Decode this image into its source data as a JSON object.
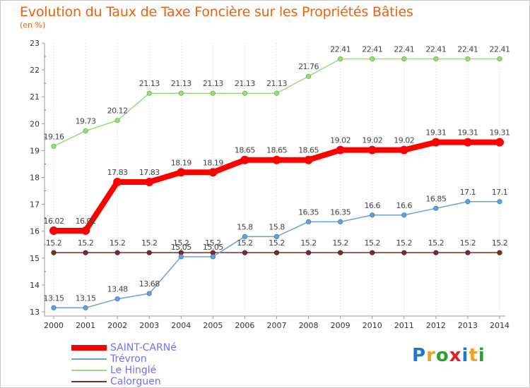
{
  "header": {
    "title": "Evolution du Taux de Taxe Foncière sur les Propriétés Bâties",
    "subtitle": "(en %)"
  },
  "logo": {
    "letters": [
      "P",
      "r",
      "o",
      "x",
      "i",
      "t",
      "i"
    ],
    "colors": [
      "#1f77c8",
      "#f0a020",
      "#2ca02c",
      "#e02020",
      "#1f77c8",
      "#f0a020",
      "#2ca02c"
    ]
  },
  "chart_data": {
    "type": "line",
    "x": [
      "2000",
      "2001",
      "2002",
      "2003",
      "2004",
      "2005",
      "2006",
      "2007",
      "2008",
      "2009",
      "2010",
      "2011",
      "2012",
      "2013",
      "2014"
    ],
    "ylim": [
      13,
      23
    ],
    "yticks": [
      "13",
      "14",
      "15",
      "16",
      "17",
      "18",
      "19",
      "20",
      "21",
      "22",
      "23"
    ],
    "grid": "dotted-vertical",
    "legend": "bottom-left",
    "series": [
      {
        "name": "SAINT-CARNé",
        "color": "#ff0000",
        "values": [
          16.02,
          16.02,
          17.83,
          17.83,
          18.19,
          18.19,
          18.65,
          18.65,
          18.65,
          19.02,
          19.02,
          19.02,
          19.31,
          19.31,
          19.31
        ],
        "labels": [
          "16.02",
          "16.02",
          "17.83",
          "17.83",
          "18.19",
          "18.19",
          "18.65",
          "18.65",
          "18.65",
          "19.02",
          "19.02",
          "19.02",
          "19.31",
          "19.31",
          "19.31"
        ]
      },
      {
        "name": "Trévron",
        "color": "#6aa0d8",
        "values": [
          13.15,
          13.15,
          13.48,
          13.68,
          15.05,
          15.05,
          15.8,
          15.8,
          16.35,
          16.35,
          16.6,
          16.6,
          16.85,
          17.1,
          17.1
        ],
        "labels": [
          "13.15",
          "13.15",
          "13.48",
          "13.68",
          "15.05",
          "15.05",
          "15.8",
          "15.8",
          "16.35",
          "16.35",
          "16.6",
          "16.6",
          "16.85",
          "17.1",
          "17.1"
        ]
      },
      {
        "name": "Le Hinglé",
        "color": "#99dd77",
        "values": [
          19.16,
          19.73,
          20.12,
          21.13,
          21.13,
          21.13,
          21.13,
          21.13,
          21.76,
          22.41,
          22.41,
          22.41,
          22.41,
          22.41,
          22.41
        ],
        "labels": [
          "19.16",
          "19.73",
          "20.12",
          "21.13",
          "21.13",
          "21.13",
          "21.13",
          "21.13",
          "21.76",
          "22.41",
          "22.41",
          "22.41",
          "22.41",
          "22.41",
          "22.41"
        ]
      },
      {
        "name": "Calorguen",
        "color": "#7a2e2e",
        "values": [
          15.2,
          15.2,
          15.2,
          15.2,
          15.2,
          15.2,
          15.2,
          15.2,
          15.2,
          15.2,
          15.2,
          15.2,
          15.2,
          15.2,
          15.2
        ],
        "labels": [
          "15.2",
          "15.2",
          "15.2",
          "15.2",
          "15.2",
          "15.2",
          "15.2",
          "15.2",
          "15.2",
          "15.2",
          "15.2",
          "15.2",
          "15.2",
          "15.2",
          "15.2"
        ]
      }
    ]
  }
}
